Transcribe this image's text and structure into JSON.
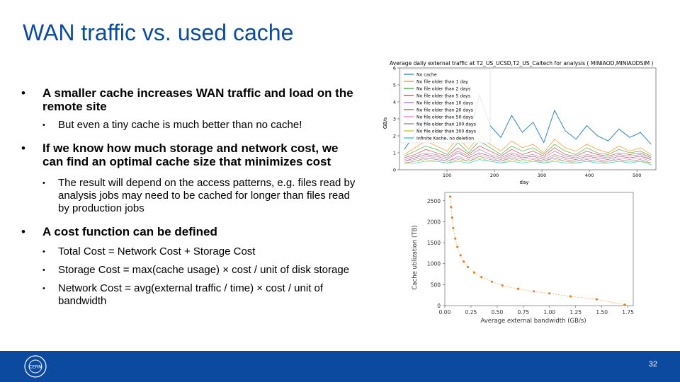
{
  "slide": {
    "title": "WAN traffic vs. used cache",
    "page_number": "32",
    "bullets": [
      {
        "text": "A smaller cache increases WAN traffic and load on the remote site",
        "sub": [
          "But even a tiny cache is much better than no cache!"
        ]
      },
      {
        "text": "If we know how much storage and network cost, we can find an optimal cache size that minimizes cost",
        "sub": [
          "The result will depend on the access patterns, e.g. files read by analysis jobs may need to be cached for longer than files read by production jobs"
        ]
      },
      {
        "text": "A cost function can be defined",
        "sub": [
          "Total Cost = Network Cost + Storage Cost",
          "Storage Cost = max(cache usage) × cost / unit of disk storage",
          "Network Cost = avg(external traffic / time) × cost / unit of bandwidth"
        ]
      }
    ],
    "logo_text": "CERN"
  },
  "chart_data": [
    {
      "type": "line",
      "title": "Average daily external traffic at T2_US_UCSD,T2_US_Caltech for analysis ( MINIAOD,MINIAODSIM )",
      "xlabel": "day",
      "ylabel": "GB/s",
      "xlim": [
        0,
        540
      ],
      "ylim": [
        0,
        6
      ],
      "xticks": [
        100,
        200,
        300,
        400,
        500
      ],
      "yticks": [
        0,
        1,
        2,
        3,
        4,
        5,
        6
      ],
      "legend_position": "top-left",
      "colors": [
        "#1f77b4",
        "#ff7f0e",
        "#2ca02c",
        "#d62728",
        "#9467bd",
        "#8c564b",
        "#e377c2",
        "#7f7f7f",
        "#bcbd22",
        "#17becf"
      ],
      "series": [
        {
          "name": "No cache",
          "values": [
            1.2,
            2.1,
            3.0,
            2.4,
            1.8,
            3.6,
            2.0,
            4.4,
            2.6,
            1.9,
            3.2,
            2.2,
            2.8,
            1.6,
            3.5,
            2.3,
            1.8,
            2.6,
            2.0,
            1.7,
            2.4,
            1.9,
            2.2,
            1.5
          ]
        },
        {
          "name": "No file older than 1 day",
          "values": [
            0.9,
            1.3,
            1.7,
            1.4,
            1.1,
            1.9,
            1.2,
            2.0,
            1.5,
            1.1,
            1.7,
            1.3,
            1.5,
            1.0,
            1.8,
            1.3,
            1.1,
            1.5,
            1.2,
            1.0,
            1.4,
            1.1,
            1.3,
            0.9
          ]
        },
        {
          "name": "No file older than 2 days",
          "values": [
            0.8,
            1.1,
            1.4,
            1.2,
            0.9,
            1.6,
            1.0,
            1.7,
            1.3,
            0.9,
            1.4,
            1.1,
            1.3,
            0.9,
            1.5,
            1.1,
            0.9,
            1.3,
            1.0,
            0.9,
            1.2,
            1.0,
            1.1,
            0.8
          ]
        },
        {
          "name": "No file older than 5 days",
          "values": [
            0.7,
            0.9,
            1.2,
            1.0,
            0.8,
            1.3,
            0.9,
            1.4,
            1.1,
            0.8,
            1.2,
            0.9,
            1.1,
            0.8,
            1.3,
            0.9,
            0.8,
            1.1,
            0.9,
            0.8,
            1.0,
            0.9,
            1.0,
            0.7
          ]
        },
        {
          "name": "No file older than 10 days",
          "values": [
            0.6,
            0.8,
            1.0,
            0.9,
            0.7,
            1.1,
            0.8,
            1.2,
            0.9,
            0.7,
            1.0,
            0.8,
            0.9,
            0.7,
            1.1,
            0.8,
            0.7,
            0.9,
            0.8,
            0.7,
            0.9,
            0.8,
            0.9,
            0.6
          ]
        },
        {
          "name": "No file older than 20 days",
          "values": [
            0.5,
            0.7,
            0.9,
            0.8,
            0.6,
            1.0,
            0.7,
            1.0,
            0.8,
            0.6,
            0.9,
            0.7,
            0.8,
            0.6,
            0.9,
            0.7,
            0.6,
            0.8,
            0.7,
            0.6,
            0.8,
            0.7,
            0.8,
            0.6
          ]
        },
        {
          "name": "No file older than 50 days",
          "values": [
            0.5,
            0.6,
            0.8,
            0.7,
            0.5,
            0.8,
            0.6,
            0.9,
            0.7,
            0.5,
            0.8,
            0.6,
            0.7,
            0.5,
            0.8,
            0.6,
            0.5,
            0.7,
            0.6,
            0.5,
            0.7,
            0.6,
            0.7,
            0.5
          ]
        },
        {
          "name": "No file older than 100 days",
          "values": [
            0.4,
            0.5,
            0.7,
            0.6,
            0.5,
            0.7,
            0.5,
            0.8,
            0.6,
            0.5,
            0.7,
            0.5,
            0.6,
            0.5,
            0.7,
            0.5,
            0.5,
            0.6,
            0.5,
            0.5,
            0.6,
            0.5,
            0.6,
            0.4
          ]
        },
        {
          "name": "No file older than 300 days",
          "values": [
            0.4,
            0.5,
            0.6,
            0.5,
            0.4,
            0.6,
            0.5,
            0.7,
            0.5,
            0.4,
            0.6,
            0.5,
            0.6,
            0.4,
            0.6,
            0.5,
            0.4,
            0.5,
            0.5,
            0.4,
            0.5,
            0.5,
            0.5,
            0.4
          ]
        },
        {
          "name": "Infinite Kache, no deletion",
          "values": [
            0.4,
            0.4,
            0.5,
            0.5,
            0.4,
            0.5,
            0.4,
            0.6,
            0.5,
            0.4,
            0.5,
            0.4,
            0.5,
            0.4,
            0.5,
            0.4,
            0.4,
            0.5,
            0.4,
            0.4,
            0.5,
            0.4,
            0.5,
            0.3
          ]
        }
      ]
    },
    {
      "type": "scatter",
      "title": "",
      "xlabel": "Average external bandwidth (GB/s)",
      "ylabel": "Cache utilization (TB)",
      "xlim": [
        0,
        1.8
      ],
      "ylim": [
        0,
        2700
      ],
      "xticks": [
        "0.00",
        "0.25",
        "0.50",
        "0.75",
        "1.00",
        "1.25",
        "1.50",
        "1.75"
      ],
      "yticks": [
        "0",
        "500",
        "1000",
        "1500",
        "2000",
        "2500"
      ],
      "color": "#ff7f0e",
      "points": [
        [
          0.05,
          2600
        ],
        [
          0.06,
          2350
        ],
        [
          0.07,
          2100
        ],
        [
          0.08,
          1850
        ],
        [
          0.1,
          1600
        ],
        [
          0.12,
          1400
        ],
        [
          0.15,
          1200
        ],
        [
          0.18,
          1050
        ],
        [
          0.22,
          920
        ],
        [
          0.28,
          790
        ],
        [
          0.35,
          680
        ],
        [
          0.45,
          570
        ],
        [
          0.55,
          480
        ],
        [
          0.7,
          400
        ],
        [
          0.85,
          340
        ],
        [
          1.0,
          290
        ],
        [
          1.2,
          220
        ],
        [
          1.45,
          150
        ],
        [
          1.72,
          20
        ]
      ]
    }
  ]
}
